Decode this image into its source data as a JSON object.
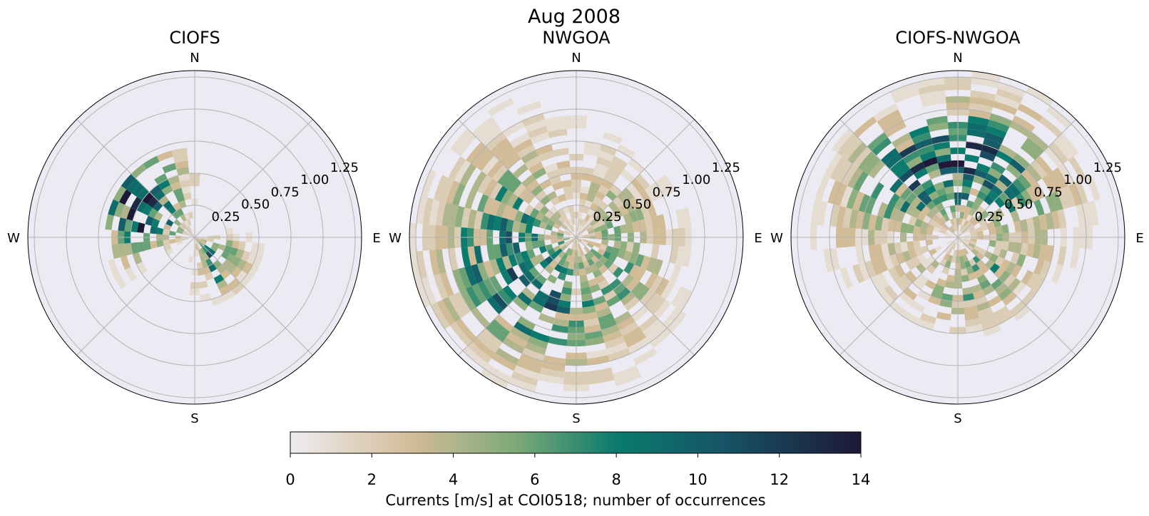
{
  "figure": {
    "title": "Aug 2008"
  },
  "chart_data": {
    "type": "polar-histogram (current rose)",
    "title": "Aug 2008",
    "radial_ticks": [
      "0.25",
      "0.50",
      "0.75",
      "1.00",
      "1.25"
    ],
    "radial_tick_values": [
      0.25,
      0.5,
      0.75,
      1.0,
      1.25
    ],
    "radial_max": 1.3,
    "direction_bins": 36,
    "speed_bin_width": 0.05,
    "compass_labels": {
      "n": "N",
      "e": "E",
      "s": "S",
      "w": "W"
    },
    "colorbar": {
      "label": "Currents [m/s] at COI0518; number of occurrences",
      "min": 0,
      "max": 14,
      "ticks": [
        "0",
        "2",
        "4",
        "6",
        "8",
        "10",
        "12",
        "14"
      ],
      "tick_values": [
        0,
        2,
        4,
        6,
        8,
        10,
        12,
        14
      ],
      "colormap_stops": [
        {
          "v": 0,
          "color": "#eeecef"
        },
        {
          "v": 3,
          "color": "#d2bc98"
        },
        {
          "v": 5.5,
          "color": "#7eaa78"
        },
        {
          "v": 8,
          "color": "#0a7b6c"
        },
        {
          "v": 10.5,
          "color": "#175568"
        },
        {
          "v": 14,
          "color": "#1d1937"
        }
      ]
    },
    "panels": [
      {
        "title": "CIOFS",
        "dominant_direction_deg": 300,
        "dominant_speed": 0.45,
        "direction_spread_deg": 28,
        "speed_spread": 0.22,
        "peak_count": 14,
        "secondary_direction_deg": 135,
        "secondary_speed": 0.25,
        "secondary_peak": 9,
        "max_speed": 0.7,
        "seed": 3
      },
      {
        "title": "NWGOA",
        "dominant_direction_deg": 240,
        "dominant_speed": 0.55,
        "direction_spread_deg": 60,
        "speed_spread": 0.35,
        "peak_count": 10,
        "secondary_direction_deg": 90,
        "secondary_speed": 0.35,
        "secondary_peak": 5,
        "max_speed": 1.3,
        "seed": 11
      },
      {
        "title": "CIOFS-NWGOA",
        "dominant_direction_deg": 355,
        "dominant_speed": 0.6,
        "direction_spread_deg": 55,
        "speed_spread": 0.3,
        "peak_count": 11,
        "secondary_direction_deg": 160,
        "secondary_speed": 0.35,
        "secondary_peak": 6,
        "max_speed": 1.3,
        "seed": 29
      }
    ]
  }
}
